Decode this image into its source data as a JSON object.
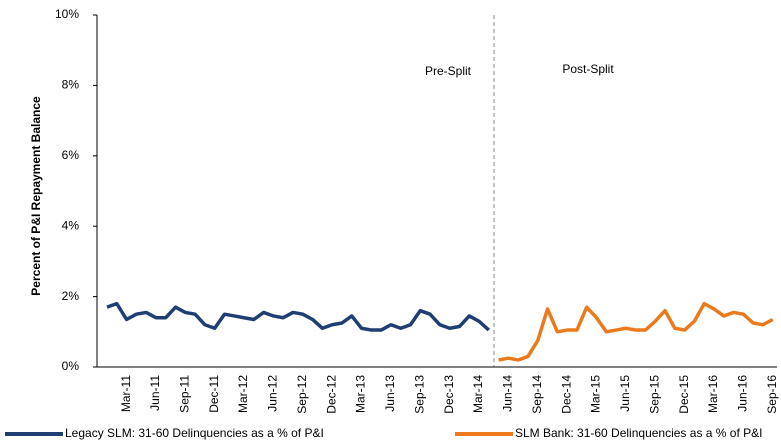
{
  "chart_data": {
    "type": "line",
    "y_label": "Percent of P&I Repayment  Balance",
    "annotations": [
      "Pre-Split",
      "Post-Split"
    ],
    "categories": [
      null,
      null,
      "Mar-11",
      null,
      null,
      "Jun-11",
      null,
      null,
      "Sep-11",
      null,
      null,
      "Dec-11",
      null,
      null,
      "Mar-12",
      null,
      null,
      "Jun-12",
      null,
      null,
      "Sep-12",
      null,
      null,
      "Dec-12",
      null,
      null,
      "Mar-13",
      null,
      null,
      "Jun-13",
      null,
      null,
      "Sep-13",
      null,
      null,
      "Dec-13",
      null,
      null,
      "Mar-14",
      null,
      null,
      "Jun-14",
      null,
      null,
      "Sep-14",
      null,
      null,
      "Dec-14",
      null,
      null,
      "Mar-15",
      null,
      null,
      "Jun-15",
      null,
      null,
      "Sep-15",
      null,
      null,
      "Dec-15",
      null,
      null,
      "Mar-16",
      null,
      null,
      "Jun-16",
      null,
      null,
      "Sep-16"
    ],
    "series": [
      {
        "name": "Legacy SLM: 31-60 Delinquencies as a % of P&I",
        "color": "#1f3f73",
        "values": [
          1.7,
          1.8,
          1.35,
          1.5,
          1.55,
          1.4,
          1.4,
          1.7,
          1.55,
          1.5,
          1.2,
          1.1,
          1.5,
          1.45,
          1.4,
          1.35,
          1.55,
          1.45,
          1.4,
          1.55,
          1.5,
          1.35,
          1.1,
          1.2,
          1.25,
          1.45,
          1.1,
          1.05,
          1.05,
          1.2,
          1.1,
          1.2,
          1.6,
          1.5,
          1.2,
          1.1,
          1.15,
          1.45,
          1.3,
          1.05,
          null,
          null,
          null,
          null,
          null,
          null,
          null,
          null,
          null,
          null,
          null,
          null,
          null,
          null,
          null,
          null,
          null,
          null,
          null,
          null,
          null,
          null,
          null,
          null,
          null,
          null,
          null,
          null,
          null
        ]
      },
      {
        "name": "SLM Bank: 31-60 Delinquencies as a % of P&I",
        "color": "#ea7a1c",
        "values": [
          null,
          null,
          null,
          null,
          null,
          null,
          null,
          null,
          null,
          null,
          null,
          null,
          null,
          null,
          null,
          null,
          null,
          null,
          null,
          null,
          null,
          null,
          null,
          null,
          null,
          null,
          null,
          null,
          null,
          null,
          null,
          null,
          null,
          null,
          null,
          null,
          null,
          null,
          null,
          null,
          0.2,
          0.25,
          0.2,
          0.3,
          0.75,
          1.65,
          1.0,
          1.05,
          1.05,
          1.7,
          1.4,
          1.0,
          1.05,
          1.1,
          1.05,
          1.05,
          1.3,
          1.6,
          1.1,
          1.05,
          1.3,
          1.8,
          1.65,
          1.45,
          1.55,
          1.5,
          1.25,
          1.2,
          1.35
        ]
      }
    ],
    "ylim": [
      0,
      10
    ],
    "yticks": [
      {
        "value": 0,
        "label": "0%"
      },
      {
        "value": 2,
        "label": "2%"
      },
      {
        "value": 4,
        "label": "4%"
      },
      {
        "value": 6,
        "label": "6%"
      },
      {
        "value": 8,
        "label": "8%"
      },
      {
        "value": 10,
        "label": "10%"
      }
    ]
  }
}
